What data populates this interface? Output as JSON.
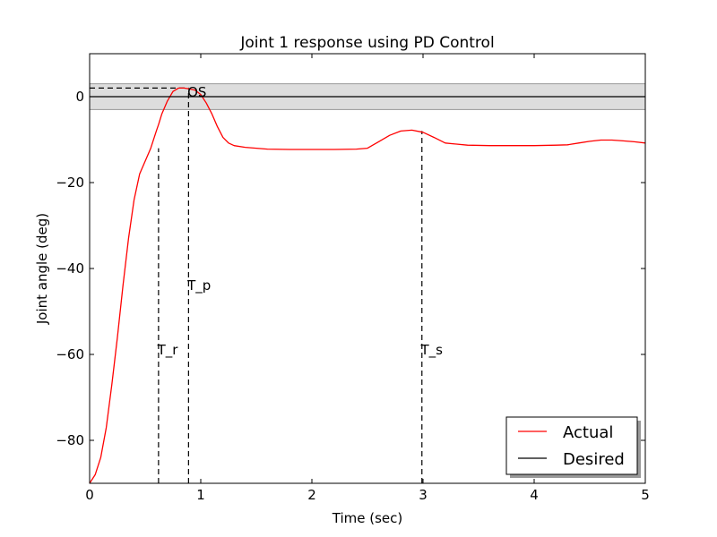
{
  "chart_data": {
    "type": "line",
    "title": "Joint 1 response using PD Control",
    "xlabel": "Time (sec)",
    "ylabel": "Joint angle (deg)",
    "xlim": [
      0,
      5
    ],
    "ylim": [
      -90,
      10
    ],
    "xticks": [
      0,
      1,
      2,
      3,
      4,
      5
    ],
    "xtick_labels": [
      "0",
      "1",
      "2",
      "3",
      "4",
      "5"
    ],
    "yticks": [
      -80,
      -60,
      -40,
      -20,
      0
    ],
    "ytick_labels": [
      "−80",
      "−60",
      "−40",
      "−20",
      "0"
    ],
    "grid": false,
    "legend_position": "lower-right",
    "series": [
      {
        "name": "Actual",
        "color": "#ff0000",
        "x": [
          0,
          0.05,
          0.1,
          0.15,
          0.2,
          0.25,
          0.3,
          0.35,
          0.4,
          0.45,
          0.5,
          0.55,
          0.6,
          0.62,
          0.65,
          0.7,
          0.75,
          0.8,
          0.85,
          0.9,
          0.95,
          1.0,
          1.05,
          1.1,
          1.15,
          1.2,
          1.25,
          1.3,
          1.4,
          1.5,
          1.6,
          1.8,
          2.0,
          2.2,
          2.4,
          2.5,
          2.6,
          2.7,
          2.8,
          2.9,
          3.0,
          3.1,
          3.2,
          3.4,
          3.6,
          3.8,
          4.0,
          4.2,
          4.3,
          4.4,
          4.5,
          4.6,
          4.7,
          4.8,
          4.9,
          5.0
        ],
        "y": [
          -90,
          -88,
          -84,
          -77,
          -67,
          -56,
          -44,
          -33,
          -24,
          -18,
          -15,
          -12,
          -8,
          -6.5,
          -4,
          -1,
          1.2,
          2,
          2,
          1.8,
          1.5,
          0.5,
          -1.5,
          -4,
          -7,
          -9.5,
          -10.8,
          -11.4,
          -11.8,
          -12,
          -12.2,
          -12.3,
          -12.3,
          -12.3,
          -12.2,
          -12,
          -10.5,
          -9,
          -8,
          -7.8,
          -8.3,
          -9.5,
          -10.8,
          -11.3,
          -11.4,
          -11.4,
          -11.4,
          -11.3,
          -11.2,
          -10.8,
          -10.4,
          -10.1,
          -10.1,
          -10.3,
          -10.5,
          -10.8
        ]
      },
      {
        "name": "Desired",
        "color": "#000000",
        "x": [
          0,
          5
        ],
        "y": [
          0,
          0
        ]
      }
    ],
    "band": {
      "y_range": [
        -3,
        3
      ],
      "color": "#dddddd"
    },
    "reference_lines": [
      {
        "orientation": "horizontal",
        "y": 2,
        "x_range": [
          0,
          0.89
        ]
      },
      {
        "orientation": "vertical",
        "x": 0.62,
        "y_range": [
          -90,
          -12
        ]
      },
      {
        "orientation": "vertical",
        "x": 0.89,
        "y_range": [
          -90,
          2
        ]
      },
      {
        "orientation": "vertical",
        "x": 2.99,
        "y_range": [
          -90,
          -8
        ]
      }
    ],
    "annotations": [
      {
        "text": "OS",
        "x": 0.88,
        "y": 1
      },
      {
        "text": "T_p",
        "x": 0.88,
        "y": -44
      },
      {
        "text": "T_r",
        "x": 0.61,
        "y": -59
      },
      {
        "text": "T_s",
        "x": 2.98,
        "y": -59
      }
    ]
  }
}
